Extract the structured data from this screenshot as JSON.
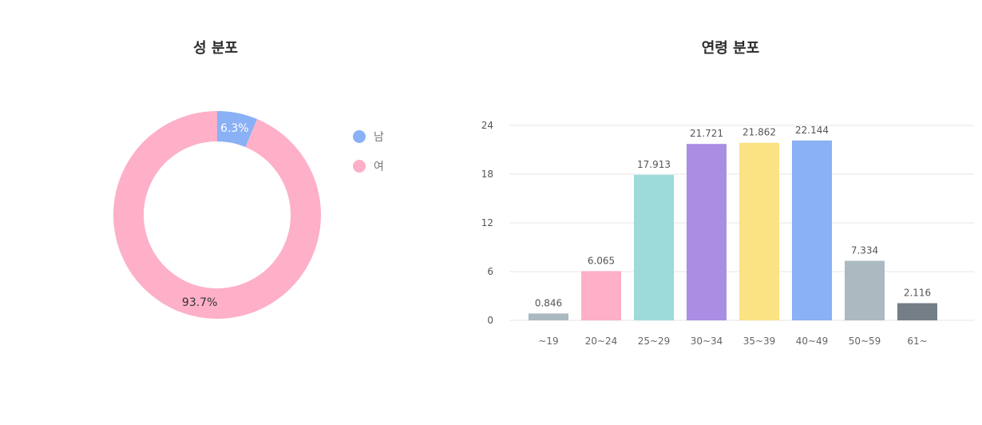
{
  "charts": {
    "gender": {
      "title": "성 분포"
    },
    "age": {
      "title": "연령 분포"
    }
  },
  "chart_data": [
    {
      "type": "pie",
      "title": "성 분포",
      "donut": true,
      "slices": [
        {
          "label": "남",
          "value": 6.3,
          "display": "6.3%",
          "color": "#8AB0F5",
          "text_color": "#ffffff"
        },
        {
          "label": "여",
          "value": 93.7,
          "display": "93.7%",
          "color": "#FDB0C8",
          "text_color": "#333333"
        }
      ],
      "legend_position": "right"
    },
    {
      "type": "bar",
      "title": "연령 분포",
      "categories": [
        "~19",
        "20~24",
        "25~29",
        "30~34",
        "35~39",
        "40~49",
        "50~59",
        "61~"
      ],
      "values": [
        0.846,
        6.065,
        17.913,
        21.721,
        21.862,
        22.144,
        7.334,
        2.116
      ],
      "value_labels": [
        "0.846",
        "6.065",
        "17.913",
        "21.721",
        "21.862",
        "22.144",
        "7.334",
        "2.116"
      ],
      "colors": [
        "#ABB9C1",
        "#FDB0C8",
        "#9DDADA",
        "#A98EE3",
        "#FBE282",
        "#8AB0F5",
        "#ABB9C1",
        "#757E87"
      ],
      "yticks": [
        0,
        6,
        12,
        18,
        24
      ],
      "ylim": [
        0,
        24
      ],
      "grid": true
    }
  ]
}
